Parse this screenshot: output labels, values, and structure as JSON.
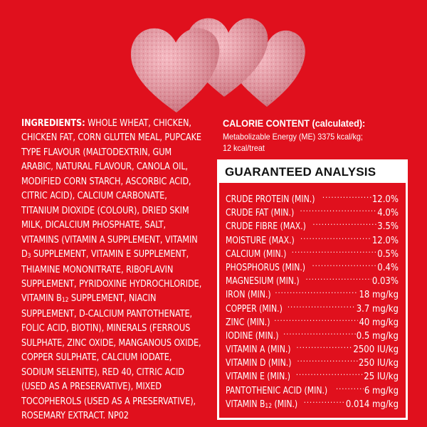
{
  "ingredients": {
    "lead": "INGREDIENTS:",
    "part1": " WHOLE WHEAT, CHICKEN, CHICKEN FAT, CORN GLUTEN MEAL, PUPCAKE TYPE FLAVOUR (MALTODEXTRIN, GUM ARABIC, NATURAL FLAVOUR, CANOLA OIL, MODIFIED CORN STARCH, ASCORBIC ACID, CITRIC ACID), CALCIUM CARBONATE, TITANIUM DIOXIDE (COLOUR), DRIED SKIM MILK, DICALCIUM PHOSPHATE, SALT, VITAMINS (VITAMIN A SUPPLEMENT, VITAMIN D",
    "sub1": "3",
    "part2": " SUPPLEMENT, VITAMIN E SUPPLEMENT, THIAMINE MONONITRATE, RIBOFLAVIN SUPPLEMENT, PYRIDOXINE HYDROCHLORIDE, VITAMIN B",
    "sub2": "12",
    "part3": " SUPPLEMENT, NIACIN SUPPLEMENT, D-CALCIUM PANTOTHENATE, FOLIC ACID, BIOTIN), MINERALS (FERROUS SULPHATE, ZINC OXIDE, MANGANOUS OXIDE, COPPER SULPHATE, CALCIUM IODATE, SODIUM SELENITE), RED 40, CITRIC ACID (USED AS A PRESERVATIVE), MIXED TOCOPHEROLS (USED AS A PRESERVATIVE), ROSEMARY EXTRACT. NP02"
  },
  "calorie": {
    "title": "CALORIE CONTENT (calculated):",
    "line1": "Metabolizable Energy (ME) 3375 kcal/kg;",
    "line2": "12 kcal/treat"
  },
  "analysis": {
    "title": "GUARANTEED ANALYSIS",
    "rows": [
      {
        "label": "CRUDE PROTEIN (MIN.)",
        "value": "12.0%"
      },
      {
        "label": "CRUDE FAT (MIN.)",
        "value": "4.0%"
      },
      {
        "label": "CRUDE FIBRE (MAX.)",
        "value": "3.5%"
      },
      {
        "label": "MOISTURE (MAX.)",
        "value": "12.0%"
      },
      {
        "label": "CALCIUM (MIN.)",
        "value": "0.5%"
      },
      {
        "label": "PHOSPHORUS (MIN.)",
        "value": "0.4%"
      },
      {
        "label": "MAGNESIUM (MIN.)",
        "value": "0.03%"
      },
      {
        "label": "IRON (MIN.)",
        "value": "18 mg/kg"
      },
      {
        "label": "COPPER (MIN.)",
        "value": "3.7 mg/kg"
      },
      {
        "label": "ZINC (MIN.)",
        "value": "40 mg/kg"
      },
      {
        "label": "IODINE (MIN.)",
        "value": "0.5 mg/kg"
      },
      {
        "label": "VITAMIN A (MIN.)",
        "value": "2500 IU/kg"
      },
      {
        "label": "VITAMIN D (MIN.)",
        "value": "250 IU/kg"
      },
      {
        "label": "VITAMIN E (MIN.)",
        "value": "25 IU/kg"
      },
      {
        "label": "PANTOTHENIC ACID (MIN.)",
        "value": "6 mg/kg"
      },
      {
        "label": "VITAMIN B",
        "sub": "12",
        "label_after": " (MIN.)",
        "value": "0.014 mg/kg"
      }
    ]
  },
  "colors": {
    "background": "#e0101d",
    "text": "#ffffff",
    "treat_pink": "#f2a3ae"
  }
}
